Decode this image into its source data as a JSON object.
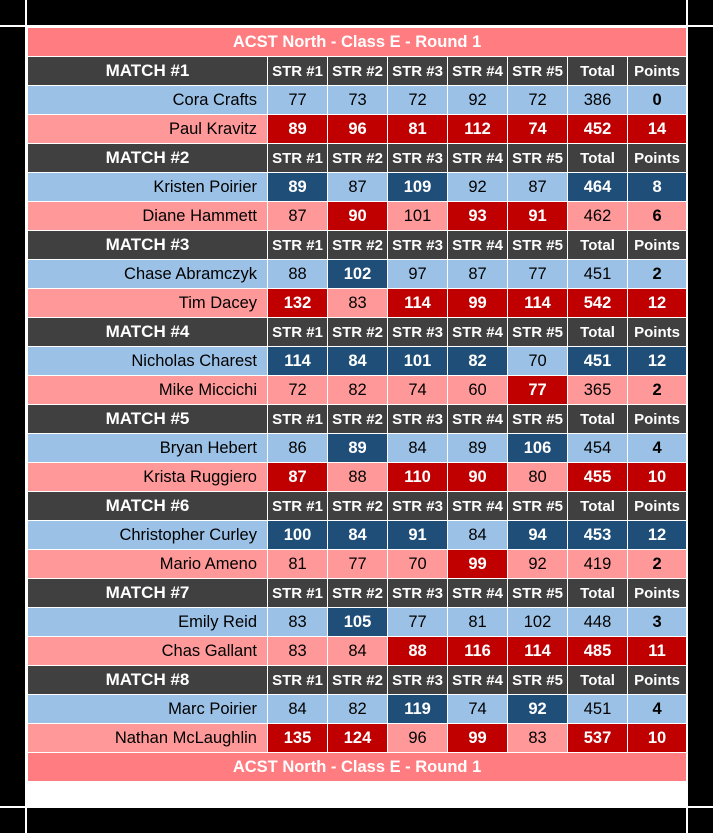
{
  "title": "ACST North - Class E - Round 1",
  "footer": "ACST North - Class E - Round 1",
  "columns": [
    "STR #1",
    "STR #2",
    "STR #3",
    "STR #4",
    "STR #5",
    "Total",
    "Points"
  ],
  "colors": {
    "title": "#FF7C80",
    "header": "#404040",
    "blue_row": "#9BC2E6",
    "blue_win": "#1F4E78",
    "pink_row": "#FF9999",
    "pink_win": "#C00000"
  },
  "matches": [
    {
      "label": "MATCH #1",
      "players": [
        {
          "name": "Cora Crafts",
          "scores": [
            77,
            73,
            72,
            92,
            72
          ],
          "total": 386,
          "points": 0,
          "wins": [
            0,
            0,
            0,
            0,
            0,
            0,
            0
          ]
        },
        {
          "name": "Paul Kravitz",
          "scores": [
            89,
            96,
            81,
            112,
            74
          ],
          "total": 452,
          "points": 14,
          "wins": [
            1,
            1,
            1,
            1,
            1,
            1,
            1
          ]
        }
      ]
    },
    {
      "label": "MATCH #2",
      "players": [
        {
          "name": "Kristen Poirier",
          "scores": [
            89,
            87,
            109,
            92,
            87
          ],
          "total": 464,
          "points": 8,
          "wins": [
            1,
            0,
            1,
            0,
            0,
            1,
            1
          ]
        },
        {
          "name": "Diane Hammett",
          "scores": [
            87,
            90,
            101,
            93,
            91
          ],
          "total": 462,
          "points": 6,
          "wins": [
            0,
            1,
            0,
            1,
            1,
            0,
            0
          ]
        }
      ]
    },
    {
      "label": "MATCH #3",
      "players": [
        {
          "name": "Chase Abramczyk",
          "scores": [
            88,
            102,
            97,
            87,
            77
          ],
          "total": 451,
          "points": 2,
          "wins": [
            0,
            1,
            0,
            0,
            0,
            0,
            0
          ]
        },
        {
          "name": "Tim Dacey",
          "scores": [
            132,
            83,
            114,
            99,
            114
          ],
          "total": 542,
          "points": 12,
          "wins": [
            1,
            0,
            1,
            1,
            1,
            1,
            1
          ]
        }
      ]
    },
    {
      "label": "MATCH #4",
      "players": [
        {
          "name": "Nicholas Charest",
          "scores": [
            114,
            84,
            101,
            82,
            70
          ],
          "total": 451,
          "points": 12,
          "wins": [
            1,
            1,
            1,
            1,
            0,
            1,
            1
          ]
        },
        {
          "name": "Mike Miccichi",
          "scores": [
            72,
            82,
            74,
            60,
            77
          ],
          "total": 365,
          "points": 2,
          "wins": [
            0,
            0,
            0,
            0,
            1,
            0,
            0
          ]
        }
      ]
    },
    {
      "label": "MATCH #5",
      "players": [
        {
          "name": "Bryan Hebert",
          "scores": [
            86,
            89,
            84,
            89,
            106
          ],
          "total": 454,
          "points": 4,
          "wins": [
            0,
            1,
            0,
            0,
            1,
            0,
            0
          ]
        },
        {
          "name": "Krista Ruggiero",
          "scores": [
            87,
            88,
            110,
            90,
            80
          ],
          "total": 455,
          "points": 10,
          "wins": [
            1,
            0,
            1,
            1,
            0,
            1,
            1
          ]
        }
      ]
    },
    {
      "label": "MATCH #6",
      "players": [
        {
          "name": "Christopher Curley",
          "scores": [
            100,
            84,
            91,
            84,
            94
          ],
          "total": 453,
          "points": 12,
          "wins": [
            1,
            1,
            1,
            0,
            1,
            1,
            1
          ]
        },
        {
          "name": "Mario Ameno",
          "scores": [
            81,
            77,
            70,
            99,
            92
          ],
          "total": 419,
          "points": 2,
          "wins": [
            0,
            0,
            0,
            1,
            0,
            0,
            0
          ]
        }
      ]
    },
    {
      "label": "MATCH #7",
      "players": [
        {
          "name": "Emily Reid",
          "scores": [
            83,
            105,
            77,
            81,
            102
          ],
          "total": 448,
          "points": 3,
          "wins": [
            0,
            1,
            0,
            0,
            0,
            0,
            0
          ]
        },
        {
          "name": "Chas Gallant",
          "scores": [
            83,
            84,
            88,
            116,
            114
          ],
          "total": 485,
          "points": 11,
          "wins": [
            0,
            0,
            1,
            1,
            1,
            1,
            1
          ]
        }
      ]
    },
    {
      "label": "MATCH #8",
      "players": [
        {
          "name": "Marc Poirier",
          "scores": [
            84,
            82,
            119,
            74,
            92
          ],
          "total": 451,
          "points": 4,
          "wins": [
            0,
            0,
            1,
            0,
            1,
            0,
            0
          ]
        },
        {
          "name": "Nathan McLaughlin",
          "scores": [
            135,
            124,
            96,
            99,
            83
          ],
          "total": 537,
          "points": 10,
          "wins": [
            1,
            1,
            0,
            1,
            0,
            1,
            1
          ]
        }
      ]
    }
  ]
}
